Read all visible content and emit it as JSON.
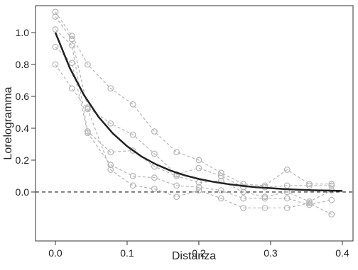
{
  "chart_data": {
    "type": "line",
    "x_label": "Distanza",
    "y_label": "Lorelogramma",
    "x": [
      0,
      0.023,
      0.045,
      0.077,
      0.108,
      0.138,
      0.169,
      0.2,
      0.231,
      0.262,
      0.292,
      0.323,
      0.354,
      0.385
    ],
    "series": [
      {
        "color": "#b5b5b5",
        "values": [
          1.13,
          0.98,
          0.8,
          0.65,
          0.55,
          0.38,
          0.25,
          0.2,
          0.12,
          0.05,
          0.04,
          0.14,
          0.05,
          0.05
        ]
      },
      {
        "color": "#b5b5b5",
        "values": [
          1.1,
          0.96,
          0.53,
          0.43,
          0.36,
          0.24,
          0.11,
          0.15,
          0.1,
          0.03,
          0.03,
          0.04,
          0.04,
          0.04
        ]
      },
      {
        "color": "#b5b5b5",
        "values": [
          1.02,
          0.92,
          0.38,
          0.25,
          0.26,
          0.16,
          0.1,
          0.06,
          0.07,
          0.0,
          -0.03,
          0.0,
          -0.06,
          0.01
        ]
      },
      {
        "color": "#b5b5b5",
        "values": [
          0.91,
          0.81,
          0.37,
          0.17,
          0.1,
          0.09,
          0.04,
          0.03,
          0.01,
          -0.04,
          -0.04,
          -0.04,
          -0.08,
          -0.05
        ]
      },
      {
        "color": "#b5b5b5",
        "values": [
          0.8,
          0.65,
          0.52,
          0.14,
          0.04,
          0.02,
          -0.03,
          0.01,
          -0.04,
          -0.1,
          -0.1,
          -0.1,
          -0.07,
          -0.14
        ]
      }
    ],
    "curve": {
      "color": "#222222",
      "x": [
        0,
        0.02,
        0.04,
        0.06,
        0.08,
        0.1,
        0.12,
        0.14,
        0.16,
        0.18,
        0.2,
        0.22,
        0.24,
        0.26,
        0.28,
        0.3,
        0.32,
        0.34,
        0.36,
        0.38,
        0.4
      ],
      "values": [
        1,
        0.779,
        0.607,
        0.472,
        0.368,
        0.287,
        0.223,
        0.174,
        0.135,
        0.105,
        0.082,
        0.064,
        0.05,
        0.039,
        0.03,
        0.024,
        0.018,
        0.014,
        0.011,
        0.009,
        0.007
      ]
    },
    "hline": 0,
    "xlim": [
      -0.0277,
      0.4149
    ],
    "ylim": [
      -0.307,
      1.169
    ],
    "xticks": [
      {
        "value": 0,
        "label": "0.0"
      },
      0.1,
      0.2,
      0.3,
      0.4
    ],
    "yticks": [
      {
        "value": 0,
        "label": "0.0"
      },
      0.2,
      0.4,
      0.6,
      0.8,
      {
        "value": 1,
        "label": "1.0"
      }
    ]
  }
}
